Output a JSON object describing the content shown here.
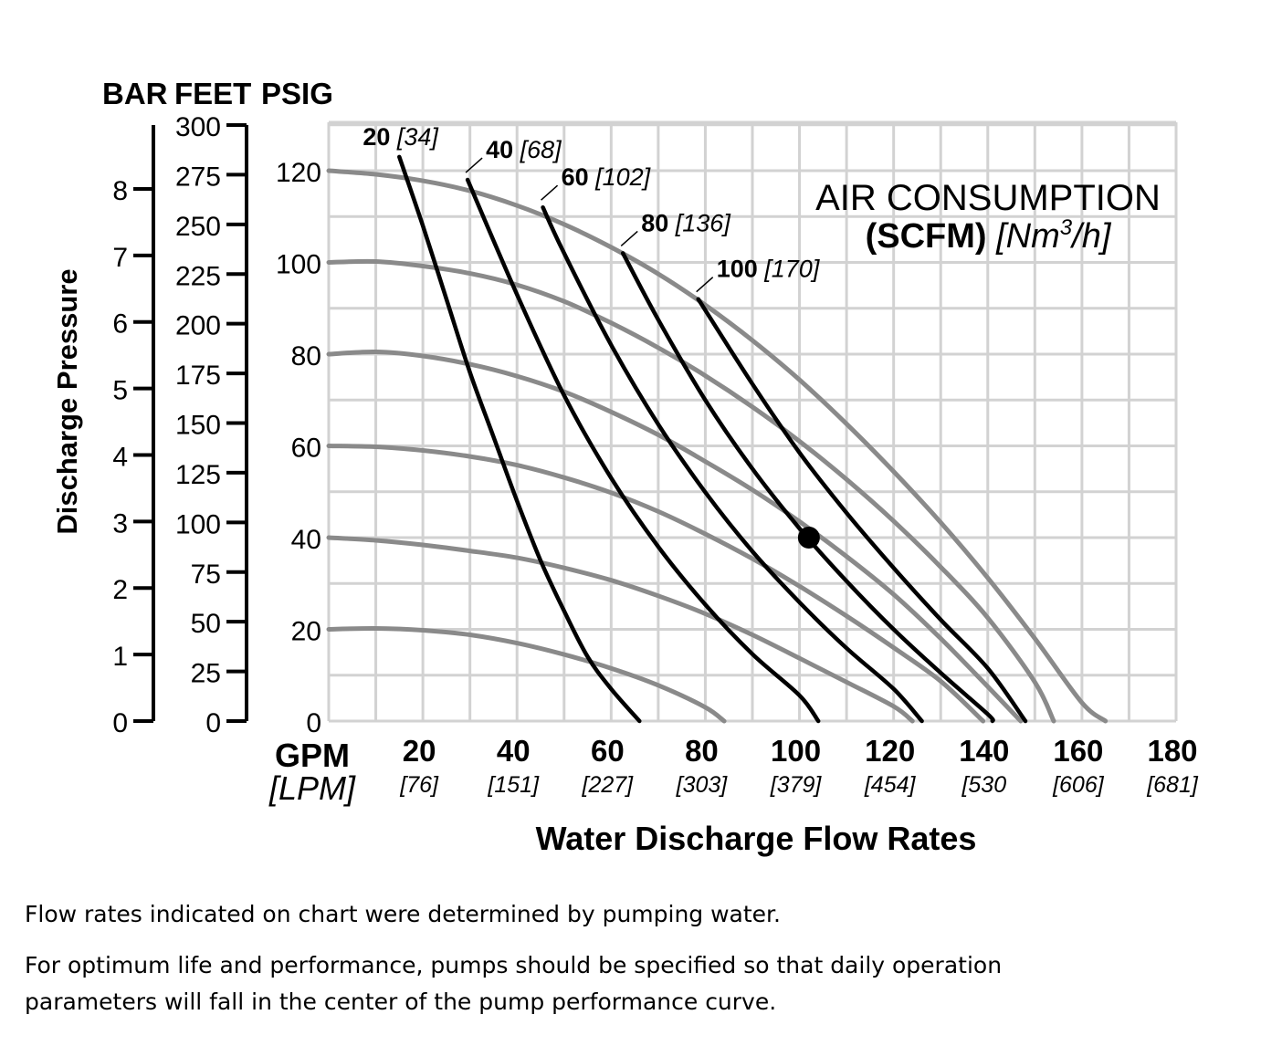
{
  "chart_data": {
    "type": "line",
    "legend_title_line1": "AIR CONSUMPTION",
    "legend_title_line2_bold": "(SCFM)",
    "legend_title_line2_italic": "[Nm",
    "legend_title_sup": "3",
    "legend_title_line2_end": "/h]",
    "left_axis_label": "Discharge Pressure",
    "bar_header": "BAR",
    "feet_header": "FEET",
    "psig_header": "PSIG",
    "xlabel": "Water Discharge Flow Rates",
    "x_unit_primary": "GPM",
    "x_unit_secondary": "[LPM]",
    "xlim": [
      0,
      180
    ],
    "ylim": [
      0,
      130
    ],
    "x_ticks": [
      20,
      40,
      60,
      80,
      100,
      120,
      140,
      160,
      180
    ],
    "x_tick_lpm": [
      "[76]",
      "[151]",
      "[227]",
      "[303]",
      "[379]",
      "[454]",
      "[530",
      "[606]",
      "[681]"
    ],
    "psig_ticks": [
      0,
      20,
      40,
      60,
      80,
      100,
      120
    ],
    "feet_ticks": [
      0,
      25,
      50,
      75,
      100,
      125,
      150,
      175,
      200,
      225,
      250,
      275,
      300
    ],
    "bar_ticks": [
      0,
      1,
      2,
      3,
      4,
      5,
      6,
      7,
      8
    ],
    "pressure_curves": [
      {
        "points": [
          [
            0,
            20
          ],
          [
            10,
            20.2
          ],
          [
            20,
            19.8
          ],
          [
            30,
            18.8
          ],
          [
            40,
            17
          ],
          [
            50,
            14.5
          ],
          [
            60,
            11.5
          ],
          [
            70,
            7.8
          ],
          [
            80,
            3
          ],
          [
            84,
            0
          ]
        ]
      },
      {
        "points": [
          [
            0,
            40
          ],
          [
            10,
            39.4
          ],
          [
            20,
            38.4
          ],
          [
            30,
            37.1
          ],
          [
            40,
            35.6
          ],
          [
            50,
            33.4
          ],
          [
            60,
            30.7
          ],
          [
            70,
            27.3
          ],
          [
            80,
            23.4
          ],
          [
            90,
            18.8
          ],
          [
            100,
            13.7
          ],
          [
            110,
            8.5
          ],
          [
            120,
            3.2
          ],
          [
            124,
            0
          ]
        ]
      },
      {
        "points": [
          [
            0,
            60
          ],
          [
            10,
            59.8
          ],
          [
            20,
            59
          ],
          [
            30,
            57.7
          ],
          [
            40,
            55.8
          ],
          [
            50,
            53.1
          ],
          [
            60,
            49.8
          ],
          [
            70,
            45.7
          ],
          [
            80,
            40.8
          ],
          [
            90,
            35.4
          ],
          [
            100,
            29.4
          ],
          [
            110,
            22.9
          ],
          [
            120,
            16
          ],
          [
            130,
            8.7
          ],
          [
            139,
            0
          ]
        ]
      },
      {
        "points": [
          [
            0,
            80
          ],
          [
            10,
            80.5
          ],
          [
            20,
            79.6
          ],
          [
            30,
            77.8
          ],
          [
            40,
            75.2
          ],
          [
            50,
            71.8
          ],
          [
            60,
            67.4
          ],
          [
            70,
            62.4
          ],
          [
            80,
            56.6
          ],
          [
            90,
            50.4
          ],
          [
            100,
            43.5
          ],
          [
            110,
            35.9
          ],
          [
            120,
            27.6
          ],
          [
            130,
            18
          ],
          [
            140,
            7.5
          ],
          [
            147,
            0
          ]
        ]
      },
      {
        "points": [
          [
            0,
            100
          ],
          [
            10,
            100.2
          ],
          [
            20,
            99.2
          ],
          [
            30,
            97.6
          ],
          [
            40,
            95.1
          ],
          [
            50,
            91.5
          ],
          [
            60,
            86.8
          ],
          [
            70,
            81.4
          ],
          [
            80,
            75.3
          ],
          [
            90,
            68.5
          ],
          [
            100,
            61
          ],
          [
            110,
            52.7
          ],
          [
            120,
            43.6
          ],
          [
            130,
            33.6
          ],
          [
            140,
            22.5
          ],
          [
            150,
            8.5
          ],
          [
            154,
            0
          ]
        ]
      },
      {
        "points": [
          [
            0,
            120
          ],
          [
            10,
            119.2
          ],
          [
            20,
            117.8
          ],
          [
            30,
            115.6
          ],
          [
            40,
            112.4
          ],
          [
            50,
            108.3
          ],
          [
            60,
            103.3
          ],
          [
            70,
            97.5
          ],
          [
            80,
            90.7
          ],
          [
            90,
            83
          ],
          [
            100,
            74.4
          ],
          [
            110,
            64.8
          ],
          [
            120,
            54.4
          ],
          [
            130,
            43.3
          ],
          [
            140,
            31.2
          ],
          [
            150,
            18
          ],
          [
            160,
            4
          ],
          [
            165,
            0
          ]
        ]
      }
    ],
    "air_series": [
      {
        "name": "20",
        "name_metric": "[34]",
        "points": [
          [
            15,
            123
          ],
          [
            20,
            108
          ],
          [
            25,
            92
          ],
          [
            30,
            76
          ],
          [
            35,
            62
          ],
          [
            40,
            48
          ],
          [
            45,
            35
          ],
          [
            50,
            24
          ],
          [
            55,
            14
          ],
          [
            60,
            7
          ],
          [
            66,
            0
          ]
        ]
      },
      {
        "name": "40",
        "name_metric": "[68]",
        "points": [
          [
            29.5,
            118
          ],
          [
            40,
            93
          ],
          [
            50,
            71
          ],
          [
            60,
            53
          ],
          [
            70,
            38
          ],
          [
            80,
            25.4
          ],
          [
            90,
            14.6
          ],
          [
            100,
            5.6
          ],
          [
            104,
            0
          ]
        ]
      },
      {
        "name": "60",
        "name_metric": "[102]",
        "points": [
          [
            45.5,
            112
          ],
          [
            50,
            102
          ],
          [
            60,
            82
          ],
          [
            70,
            64.7
          ],
          [
            80,
            49.9
          ],
          [
            90,
            37
          ],
          [
            100,
            25.9
          ],
          [
            110,
            15.9
          ],
          [
            120,
            7
          ],
          [
            126,
            0
          ]
        ]
      },
      {
        "name": "80",
        "name_metric": "[136]",
        "points": [
          [
            62.5,
            102
          ],
          [
            70,
            87.5
          ],
          [
            80,
            70
          ],
          [
            90,
            55
          ],
          [
            100,
            42
          ],
          [
            110,
            30.5
          ],
          [
            120,
            20
          ],
          [
            130,
            10.5
          ],
          [
            140,
            1.5
          ],
          [
            141,
            0
          ]
        ]
      },
      {
        "name": "100",
        "name_metric": "[170]",
        "points": [
          [
            78.5,
            92
          ],
          [
            90,
            73.5
          ],
          [
            100,
            58.5
          ],
          [
            110,
            45.4
          ],
          [
            120,
            33.4
          ],
          [
            130,
            22.1
          ],
          [
            140,
            11.5
          ],
          [
            148,
            0
          ]
        ]
      }
    ],
    "marker_point": [
      102,
      40
    ]
  },
  "notes": {
    "line1": "Flow rates indicated on chart were determined by pumping water.",
    "line2": "For optimum life and performance, pumps should be specified so that daily operation parameters will fall in the center of the pump performance curve."
  }
}
